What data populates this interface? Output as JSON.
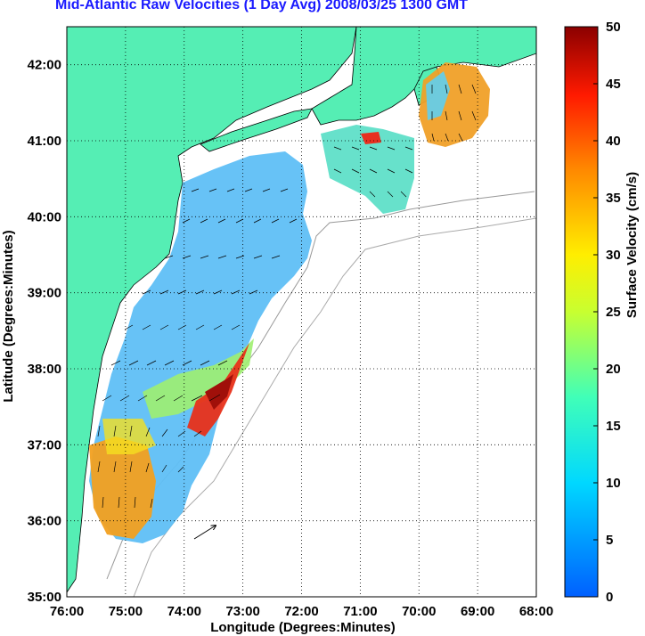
{
  "title": "Mid-Atlantic Raw Velocities (1 Day Avg) 2008/03/25 1300 GMT",
  "map": {
    "xlabel": "Longitude (Degrees:Minutes)",
    "ylabel": "Latitude (Degrees:Minutes)",
    "x_ticks": [
      "76:00",
      "75:00",
      "74:00",
      "73:00",
      "72:00",
      "71:00",
      "70:00",
      "69:00",
      "68:00"
    ],
    "y_ticks": [
      "42:00",
      "41:00",
      "40:00",
      "39:00",
      "38:00",
      "37:00",
      "36:00",
      "35:00"
    ],
    "lon_range": [
      -76,
      -68
    ],
    "lat_range": [
      35,
      42.5
    ],
    "grid": true,
    "land_color": "#55eeb4",
    "ocean_color": "#ffffff"
  },
  "colorbar": {
    "label": "Surface Velocity (cm/s)",
    "min": 0,
    "max": 50,
    "ticks": [
      "50",
      "45",
      "40",
      "35",
      "30",
      "25",
      "20",
      "15",
      "10",
      "5",
      "0"
    ],
    "colormap": "jet"
  }
}
